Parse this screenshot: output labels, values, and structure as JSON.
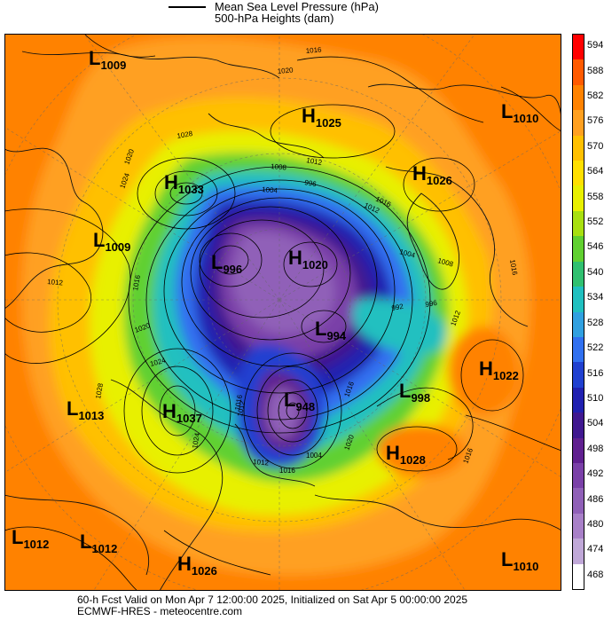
{
  "legend": {
    "line1": "Mean Sea Level Pressure (hPa)",
    "line2": "500-hPa Heights (dam)"
  },
  "colorbar": {
    "labels": [
      "594",
      "588",
      "582",
      "576",
      "570",
      "564",
      "558",
      "552",
      "546",
      "540",
      "534",
      "528",
      "522",
      "516",
      "510",
      "504",
      "498",
      "492",
      "486",
      "480",
      "474",
      "468"
    ],
    "colors": [
      "#ff0000",
      "#ff5a00",
      "#ff8200",
      "#ffa020",
      "#ffc000",
      "#ffe000",
      "#e8f000",
      "#a8e010",
      "#60d030",
      "#30c070",
      "#20c0c0",
      "#30a0e0",
      "#3070f0",
      "#2040d0",
      "#2020b0",
      "#401890",
      "#602090",
      "#7a40a8",
      "#9060b8",
      "#a880c8",
      "#c0a8d8",
      "#ffffff"
    ]
  },
  "systems": [
    {
      "type": "L",
      "value": "1009"
    },
    {
      "type": "H",
      "value": "1025"
    },
    {
      "type": "L",
      "value": "1010"
    },
    {
      "type": "H",
      "value": "1033"
    },
    {
      "type": "H",
      "value": "1026"
    },
    {
      "type": "L",
      "value": "1009"
    },
    {
      "type": "L",
      "value": "996"
    },
    {
      "type": "H",
      "value": "1020"
    },
    {
      "type": "L",
      "value": "994"
    },
    {
      "type": "H",
      "value": "1022"
    },
    {
      "type": "L",
      "value": "998"
    },
    {
      "type": "L",
      "value": "1013"
    },
    {
      "type": "H",
      "value": "1037"
    },
    {
      "type": "L",
      "value": "948"
    },
    {
      "type": "H",
      "value": "1028"
    },
    {
      "type": "L",
      "value": "1012"
    },
    {
      "type": "L",
      "value": "1012"
    },
    {
      "type": "H",
      "value": "1026"
    },
    {
      "type": "L",
      "value": "1010"
    }
  ],
  "contour_labels": [
    "1016",
    "1020",
    "1028",
    "1020",
    "1024",
    "1012",
    "1008",
    "996",
    "1012",
    "1016",
    "1004",
    "1008",
    "1016",
    "1012",
    "1004",
    "992",
    "996",
    "1012",
    "1016",
    "1020",
    "1024",
    "1028",
    "1016",
    "1012",
    "1016",
    "1004",
    "1024",
    "1016",
    "1012",
    "1020",
    "1016"
  ],
  "footer": {
    "line1": "60-h Fcst Valid on Mon Apr  7 12:00:00 2025, Initialized on Sat Apr  5 00:00:00 2025",
    "line2": "ECMWF-HRES  - meteocentre.com"
  }
}
